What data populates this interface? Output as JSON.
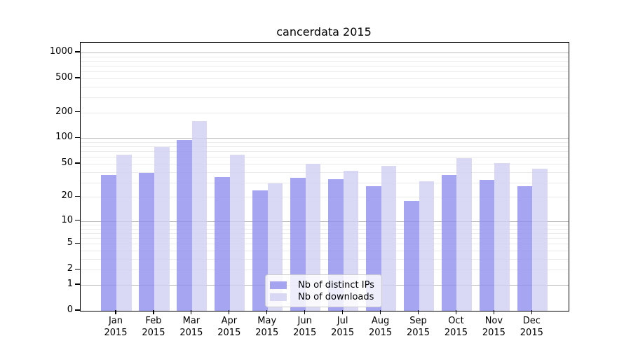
{
  "chart_data": {
    "type": "bar",
    "title": "cancerdata 2015",
    "categories": [
      "Jan 2015",
      "Feb 2015",
      "Mar 2015",
      "Apr 2015",
      "May 2015",
      "Jun 2015",
      "Jul 2015",
      "Aug 2015",
      "Sep 2015",
      "Oct 2015",
      "Nov 2015",
      "Dec 2015"
    ],
    "series": [
      {
        "name": "Nb of distinct IPs",
        "color": "#8e8eee",
        "opacity": 0.8,
        "values": [
          37,
          39,
          95,
          35,
          24,
          34,
          33,
          27,
          18,
          37,
          32,
          27
        ]
      },
      {
        "name": "Nb of downloads",
        "color": "#cfcff3",
        "opacity": 0.8,
        "values": [
          64,
          79,
          160,
          64,
          29,
          50,
          41,
          47,
          31,
          58,
          51,
          44
        ]
      }
    ],
    "yscale": "log1p",
    "ylim": [
      0,
      1300
    ],
    "yticks": [
      0,
      1,
      2,
      5,
      10,
      20,
      50,
      100,
      200,
      500,
      1000
    ],
    "grid": {
      "major_ticks": [
        1,
        10,
        100,
        1000
      ],
      "major_color": "#bdbdbd",
      "minor_color": "#ebebeb"
    },
    "legend_position": "lower-center",
    "axis_color": "#000000"
  }
}
